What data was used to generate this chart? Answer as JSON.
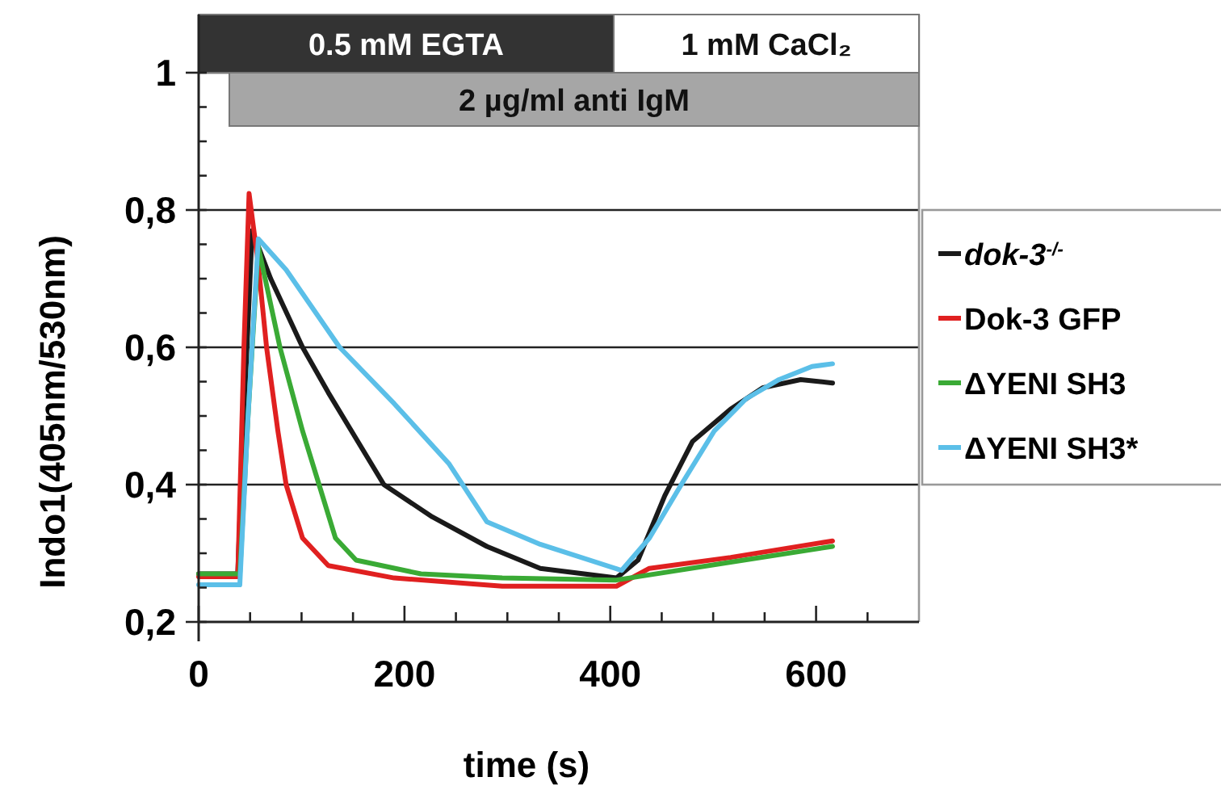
{
  "chart_data": {
    "type": "line",
    "xlabel": "time (s)",
    "ylabel": "Indo1(405nm/530nm)",
    "xlim": [
      0,
      700
    ],
    "ylim": [
      0.2,
      1.0
    ],
    "xticks": [
      0,
      {
        "value": 50,
        "label": null
      },
      {
        "value": 100,
        "label": null
      },
      {
        "value": 150,
        "label": null
      },
      200,
      {
        "value": 250,
        "label": null
      },
      {
        "value": 300,
        "label": null
      },
      {
        "value": 350,
        "label": null
      },
      400,
      {
        "value": 450,
        "label": null
      },
      {
        "value": 500,
        "label": null
      },
      {
        "value": 550,
        "label": null
      },
      600,
      {
        "value": 650,
        "label": null
      }
    ],
    "yticks": [
      {
        "value": 0.2,
        "label": "0,2"
      },
      {
        "value": 0.25,
        "label": null
      },
      {
        "value": 0.3,
        "label": null
      },
      {
        "value": 0.35,
        "label": null
      },
      {
        "value": 0.4,
        "label": "0,4"
      },
      {
        "value": 0.45,
        "label": null
      },
      {
        "value": 0.5,
        "label": null
      },
      {
        "value": 0.55,
        "label": null
      },
      {
        "value": 0.6,
        "label": "0,6"
      },
      {
        "value": 0.65,
        "label": null
      },
      {
        "value": 0.7,
        "label": null
      },
      {
        "value": 0.75,
        "label": null
      },
      {
        "value": 0.8,
        "label": "0,8"
      },
      {
        "value": 0.85,
        "label": null
      },
      {
        "value": 0.9,
        "label": null
      },
      {
        "value": 0.95,
        "label": null
      },
      {
        "value": 1.0,
        "label": "1"
      }
    ],
    "grid": "y",
    "legend": "right",
    "marker": "none",
    "line_style": "solid",
    "annotations": [
      "0.5 mM EGTA",
      "1 mM CaCl₂",
      "2 µg/ml anti IgM"
    ],
    "series": [
      {
        "name": "dok-3$^{-/-}$",
        "color": "#1a1a1a",
        "x": [
          0,
          38,
          44,
          52,
          70,
          101,
          126,
          180,
          227,
          280,
          332,
          406,
          427,
          453,
          480,
          517,
          548,
          585,
          616
        ],
        "values": [
          0.27,
          0.27,
          0.5,
          0.77,
          0.7,
          0.6,
          0.534,
          0.4,
          0.353,
          0.31,
          0.278,
          0.264,
          0.29,
          0.384,
          0.463,
          0.51,
          0.541,
          0.553,
          0.548
        ]
      },
      {
        "name": "Dok-3 GFP",
        "color": "#e02020",
        "x": [
          0,
          38,
          44,
          49,
          58,
          66,
          77,
          85,
          101,
          126,
          190,
          295,
          406,
          438,
          517,
          616
        ],
        "values": [
          0.266,
          0.266,
          0.6,
          0.824,
          0.72,
          0.6,
          0.478,
          0.4,
          0.322,
          0.282,
          0.264,
          0.252,
          0.252,
          0.278,
          0.294,
          0.318
        ]
      },
      {
        "name": "ΔYENI SH3",
        "color": "#3aaa35",
        "x": [
          0,
          40,
          48,
          58,
          79,
          101,
          117,
          133,
          153,
          216,
          295,
          406,
          517,
          616
        ],
        "values": [
          0.27,
          0.27,
          0.5,
          0.746,
          0.6,
          0.478,
          0.4,
          0.322,
          0.29,
          0.27,
          0.264,
          0.261,
          0.287,
          0.31
        ]
      },
      {
        "name": "ΔYENI SH3*",
        "color": "#5bbfe8",
        "x": [
          0,
          40,
          48,
          58,
          85,
          137,
          190,
          243,
          280,
          332,
          411,
          438,
          469,
          501,
          532,
          564,
          596,
          616
        ],
        "values": [
          0.254,
          0.254,
          0.5,
          0.758,
          0.713,
          0.6,
          0.518,
          0.431,
          0.346,
          0.313,
          0.275,
          0.322,
          0.4,
          0.478,
          0.525,
          0.553,
          0.572,
          0.576
        ]
      }
    ]
  }
}
